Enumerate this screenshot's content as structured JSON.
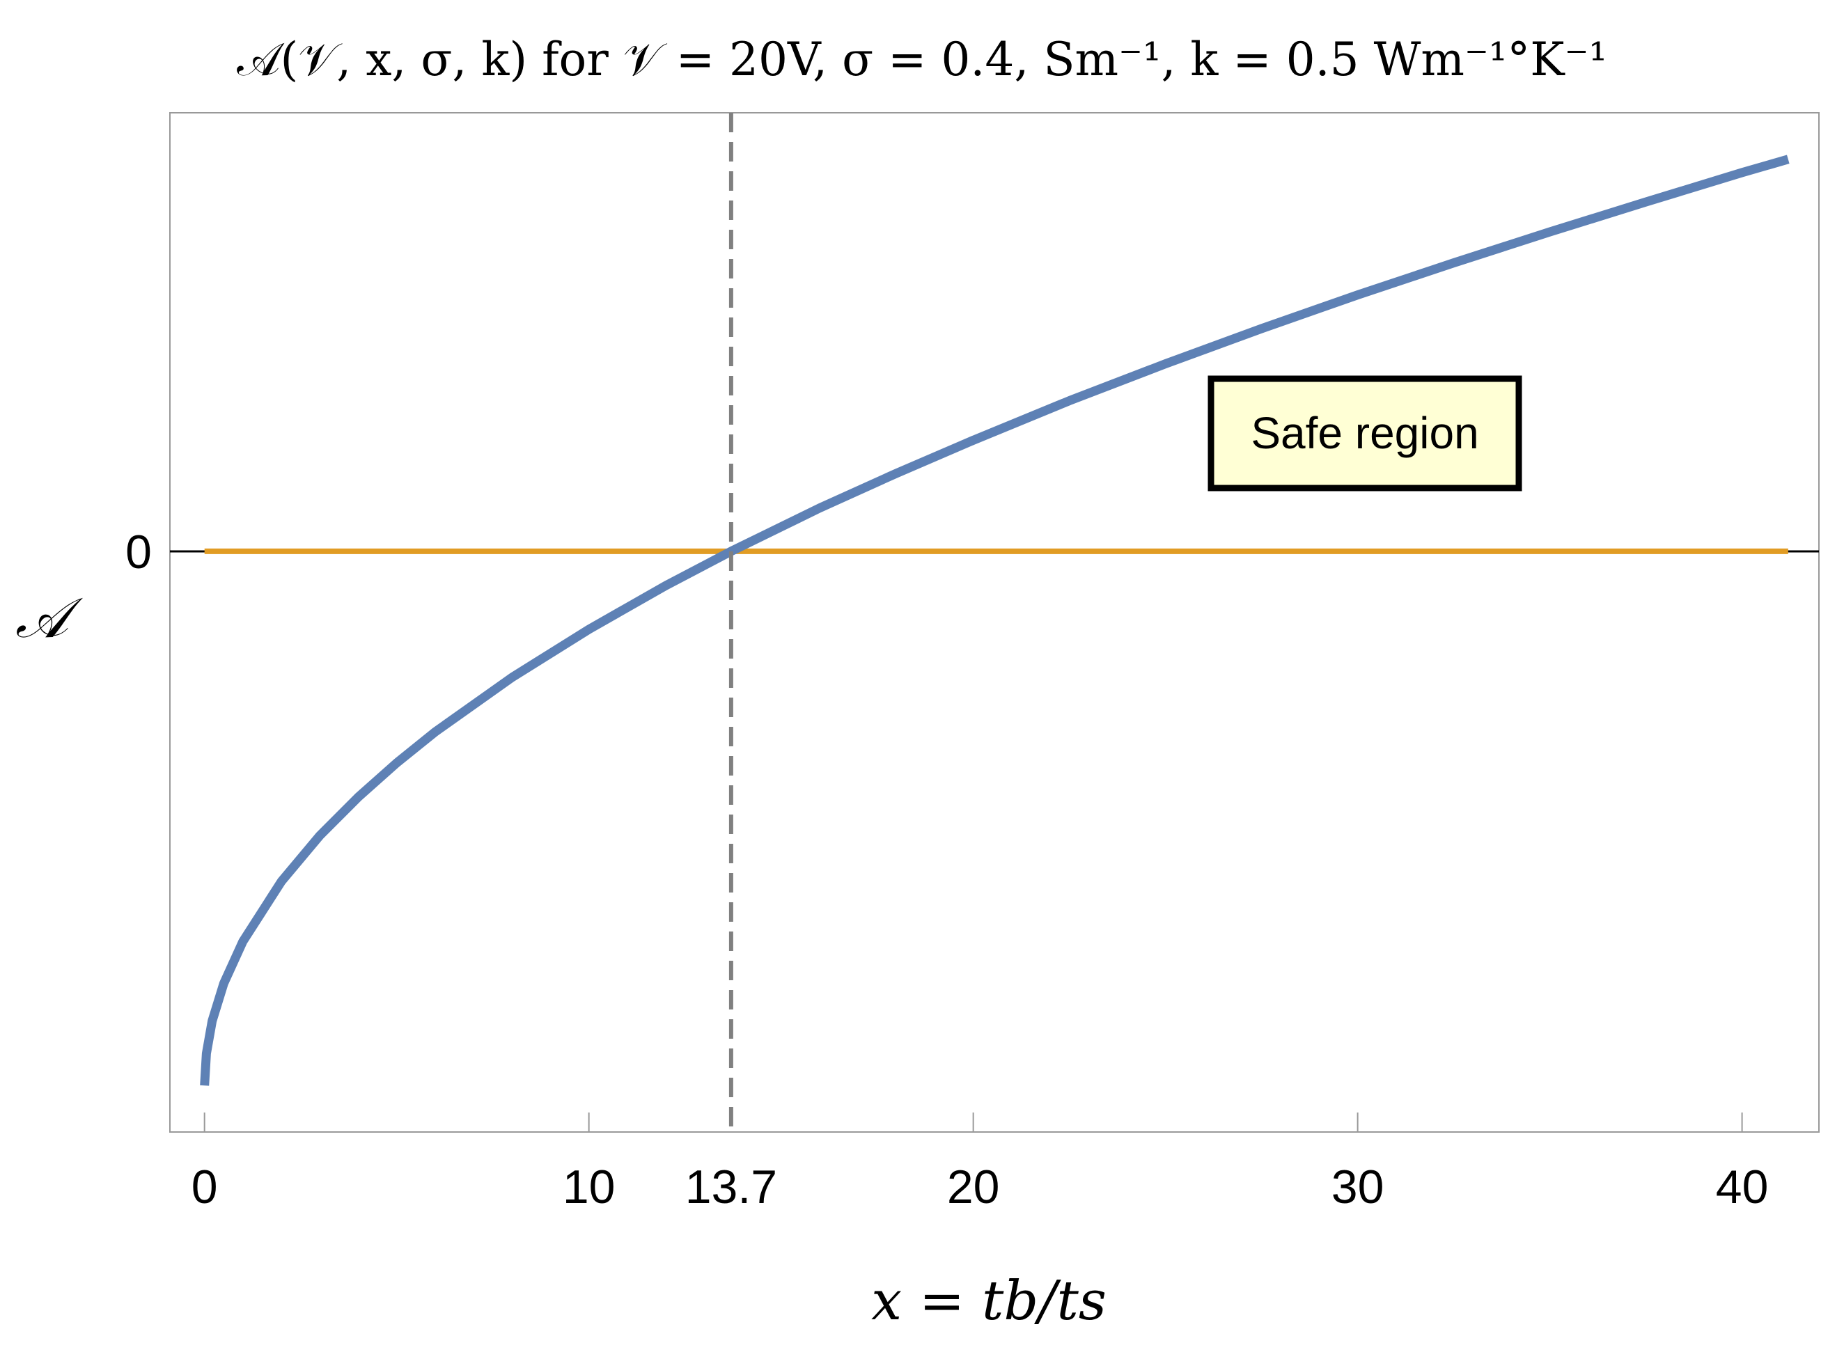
{
  "chart_data": {
    "type": "line",
    "title": "𝒜(𝒱, x, σ, k) for 𝒱 = 20V,  σ = 0.4, Sm⁻¹,  k = 0.5 Wm⁻¹°K⁻¹",
    "xlabel": "x = t_b / t_s",
    "xlabel_display": "x = tb/ts",
    "ylabel": "𝒜",
    "xlim": [
      -0.9,
      42
    ],
    "ylim": [
      -1.087,
      0.821
    ],
    "x_ticks": [
      0,
      10,
      13.7,
      20,
      30,
      40
    ],
    "x_tick_labels": [
      "0",
      "10",
      "13.7",
      "20",
      "30",
      "40"
    ],
    "y_ticks": [
      0
    ],
    "y_tick_labels": [
      "0"
    ],
    "grid": false,
    "series": [
      {
        "color": "#5e81b5",
        "x": [
          0,
          0.05,
          0.2,
          0.5,
          1,
          2,
          3,
          4,
          5,
          6,
          8,
          10,
          12,
          13.7,
          16,
          18,
          20,
          22.5,
          25,
          27.5,
          30,
          32.5,
          35,
          37.5,
          40,
          41.2
        ],
        "y": [
          -1,
          -0.94,
          -0.879,
          -0.809,
          -0.73,
          -0.618,
          -0.532,
          -0.46,
          -0.396,
          -0.338,
          -0.236,
          -0.146,
          -0.064,
          0,
          0.081,
          0.146,
          0.208,
          0.282,
          0.351,
          0.417,
          0.48,
          0.54,
          0.598,
          0.654,
          0.709,
          0.734
        ]
      },
      {
        "color": "#e19c24",
        "x": [
          0,
          41.2
        ],
        "y": [
          0,
          0
        ]
      }
    ],
    "vertical_line": {
      "x": 13.7,
      "style": "dashed",
      "color": "#808080"
    },
    "annotation": {
      "text": "Safe region",
      "background": "#ffffd5",
      "border": "#000000"
    }
  }
}
